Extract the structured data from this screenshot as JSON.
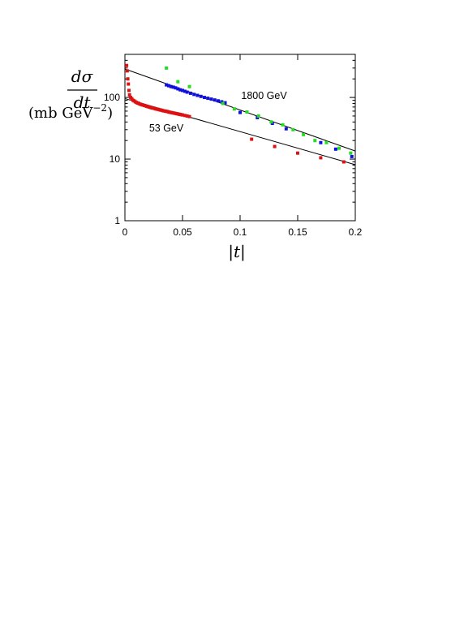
{
  "chart_data": {
    "type": "scatter",
    "title": "",
    "ylabel": {
      "numerator": "dσ",
      "denominator": "dt",
      "units": "(mb GeV",
      "units_exp": "−2",
      "units_close": ")"
    },
    "xlabel": "|t|",
    "xlim": [
      0,
      0.2
    ],
    "ylim": [
      1,
      500
    ],
    "y_scale": "log",
    "grid": false,
    "x_ticks": [
      0,
      0.05,
      0.1,
      0.15,
      0.2
    ],
    "x_tick_labels": [
      "0",
      "0.05",
      "0.1",
      "0.15",
      "0.2"
    ],
    "y_ticks": [
      1,
      10,
      100
    ],
    "y_tick_labels": [
      "1",
      "10",
      "100"
    ],
    "annotations": [
      {
        "text": "1800 GeV",
        "x": 0.101,
        "y": 95
      },
      {
        "text": "53 GeV",
        "x": 0.021,
        "y": 28
      }
    ],
    "fit_lines": [
      {
        "name": "1800 GeV fit",
        "x": [
          0,
          0.2
        ],
        "y": [
          290,
          13.5
        ],
        "color": "#000000"
      },
      {
        "name": "53 GeV fit",
        "x": [
          0,
          0.2
        ],
        "y": [
          96,
          8.1
        ],
        "color": "#000000"
      }
    ],
    "series": [
      {
        "color": "#1010dd",
        "x": [
          0.036,
          0.038,
          0.04,
          0.042,
          0.044,
          0.046,
          0.048,
          0.05,
          0.052,
          0.054,
          0.057,
          0.06,
          0.063,
          0.066,
          0.069,
          0.072,
          0.075,
          0.078,
          0.081,
          0.084,
          0.087,
          0.1,
          0.115,
          0.128,
          0.14,
          0.17,
          0.183,
          0.197
        ],
        "y": [
          160,
          155,
          150,
          147,
          143,
          138,
          133,
          130,
          126,
          122,
          117,
          112,
          108,
          104,
          100,
          97,
          94,
          91,
          88,
          85,
          82,
          57,
          47,
          38,
          31,
          18.5,
          14.5,
          11
        ]
      },
      {
        "color": "#22dd22",
        "x": [
          0.036,
          0.046,
          0.056,
          0.085,
          0.095,
          0.106,
          0.116,
          0.127,
          0.137,
          0.146,
          0.155,
          0.165,
          0.175,
          0.186,
          0.196
        ],
        "y": [
          300,
          180,
          150,
          80,
          65,
          58,
          50,
          40,
          36,
          30,
          25,
          20,
          18.5,
          15,
          12.5
        ]
      },
      {
        "color": "#dd1111",
        "x": [
          0.0015,
          0.002,
          0.0025,
          0.003,
          0.0035,
          0.004,
          0.005,
          0.006,
          0.007,
          0.008,
          0.009,
          0.01,
          0.011,
          0.012,
          0.013,
          0.014,
          0.015,
          0.016,
          0.017,
          0.018,
          0.019,
          0.02,
          0.021,
          0.022,
          0.023,
          0.024,
          0.025,
          0.026,
          0.027,
          0.028,
          0.029,
          0.03,
          0.031,
          0.032,
          0.033,
          0.034,
          0.035,
          0.036,
          0.037,
          0.038,
          0.039,
          0.04,
          0.041,
          0.042,
          0.043,
          0.044,
          0.045,
          0.046,
          0.047,
          0.048,
          0.049,
          0.05,
          0.052,
          0.054,
          0.056,
          0.11,
          0.13,
          0.15,
          0.17,
          0.19
        ],
        "y": [
          330,
          270,
          200,
          165,
          130,
          110,
          100,
          95,
          90,
          88,
          85,
          83,
          81,
          80,
          78,
          77,
          76,
          75,
          74,
          73,
          72,
          71,
          70,
          69,
          68,
          67.5,
          67,
          66,
          65,
          64.5,
          64,
          63,
          62.5,
          62,
          61,
          60.5,
          60,
          59.5,
          59,
          58,
          57.5,
          57,
          56.5,
          56,
          55.5,
          55,
          54.5,
          54,
          53.5,
          53,
          52.5,
          52,
          51,
          50,
          49,
          21,
          16,
          12.5,
          10.5,
          9
        ]
      }
    ]
  }
}
